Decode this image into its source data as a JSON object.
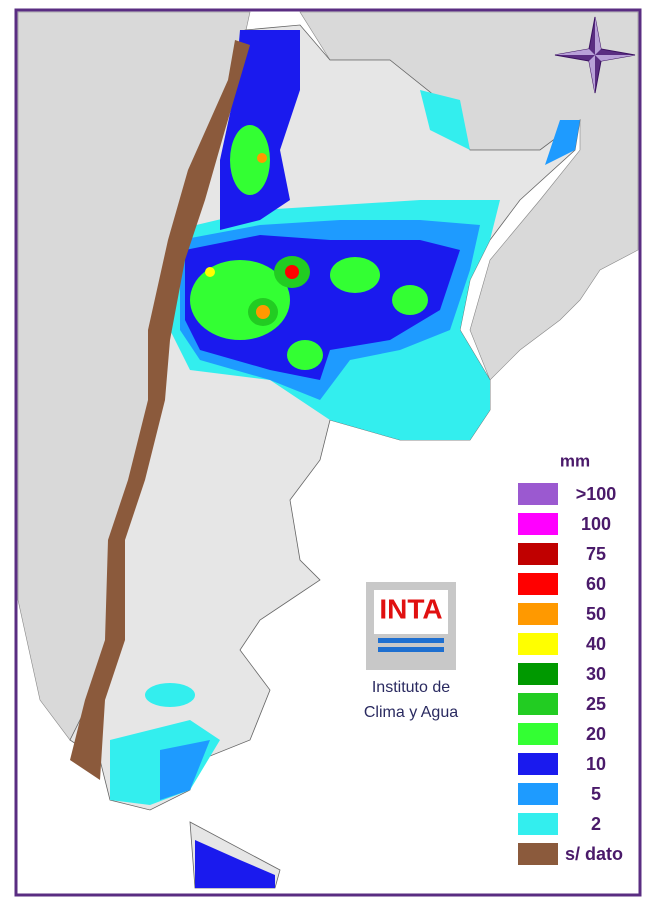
{
  "legend": {
    "title": "mm",
    "items": [
      {
        "label": ">100",
        "color": "#9b59d0"
      },
      {
        "label": "100",
        "color": "#ff00ff"
      },
      {
        "label": "75",
        "color": "#c00000"
      },
      {
        "label": "60",
        "color": "#ff0000"
      },
      {
        "label": "50",
        "color": "#ff9900"
      },
      {
        "label": "40",
        "color": "#ffff00"
      },
      {
        "label": "30",
        "color": "#009900"
      },
      {
        "label": "25",
        "color": "#22cc22"
      },
      {
        "label": "20",
        "color": "#33ff33"
      },
      {
        "label": "10",
        "color": "#1a1aee"
      },
      {
        "label": "5",
        "color": "#1e9bff"
      },
      {
        "label": "2",
        "color": "#33eeee"
      },
      {
        "label": "s/ dato",
        "color": "#8b5a3c"
      }
    ]
  },
  "logo": {
    "acronym": "INTA",
    "line1": "Instituto de",
    "line2": "Clima y Agua"
  }
}
